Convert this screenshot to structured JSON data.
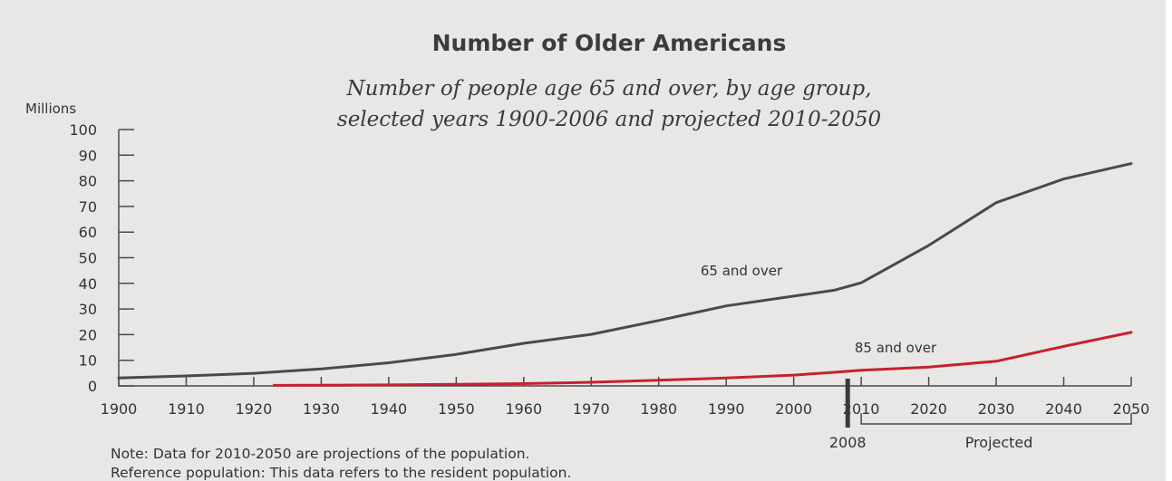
{
  "chart_data": {
    "type": "line",
    "title": "Number of Older Americans",
    "subtitle_line1": "Number of people age 65 and over, by age group,",
    "subtitle_line2": "selected years 1900-2006 and projected 2010-2050",
    "ylabel": "Millions",
    "xlabel": "",
    "ylim": [
      0,
      100
    ],
    "xlim": [
      1900,
      2050
    ],
    "y_ticks": [
      0,
      10,
      20,
      30,
      40,
      50,
      60,
      70,
      80,
      90,
      100
    ],
    "x_ticks": [
      1900,
      1910,
      1920,
      1930,
      1940,
      1950,
      1960,
      1970,
      1980,
      1990,
      2000,
      2010,
      2020,
      2030,
      2040,
      2050
    ],
    "series": [
      {
        "name": "65 and over",
        "color": "#4a4a4a",
        "points": [
          [
            1900,
            3.1
          ],
          [
            1910,
            3.9
          ],
          [
            1920,
            4.9
          ],
          [
            1930,
            6.6
          ],
          [
            1940,
            9.0
          ],
          [
            1950,
            12.3
          ],
          [
            1960,
            16.6
          ],
          [
            1970,
            20.1
          ],
          [
            1980,
            25.5
          ],
          [
            1990,
            31.2
          ],
          [
            2000,
            35.0
          ],
          [
            2006,
            37.3
          ],
          [
            2010,
            40.2
          ],
          [
            2020,
            54.8
          ],
          [
            2030,
            71.5
          ],
          [
            2040,
            80.7
          ],
          [
            2050,
            86.7
          ]
        ]
      },
      {
        "name": "85 and over",
        "color": "#c8202d",
        "points": [
          [
            1923,
            0.2
          ],
          [
            1930,
            0.3
          ],
          [
            1940,
            0.4
          ],
          [
            1950,
            0.6
          ],
          [
            1960,
            0.9
          ],
          [
            1970,
            1.4
          ],
          [
            1980,
            2.2
          ],
          [
            1990,
            3.1
          ],
          [
            2000,
            4.2
          ],
          [
            2006,
            5.3
          ],
          [
            2010,
            6.1
          ],
          [
            2020,
            7.3
          ],
          [
            2030,
            9.6
          ],
          [
            2040,
            15.4
          ],
          [
            2050,
            20.9
          ]
        ]
      }
    ],
    "marker_label": "2008",
    "marker_year": 2008,
    "projected_label": "Projected",
    "projected_range": [
      2010,
      2050
    ],
    "grid": false,
    "legend": "none (inline series labels)"
  },
  "notes": {
    "line1": "Note: Data for 2010-2050 are projections of the population.",
    "line2": "Reference population: This data refers to the resident population."
  }
}
